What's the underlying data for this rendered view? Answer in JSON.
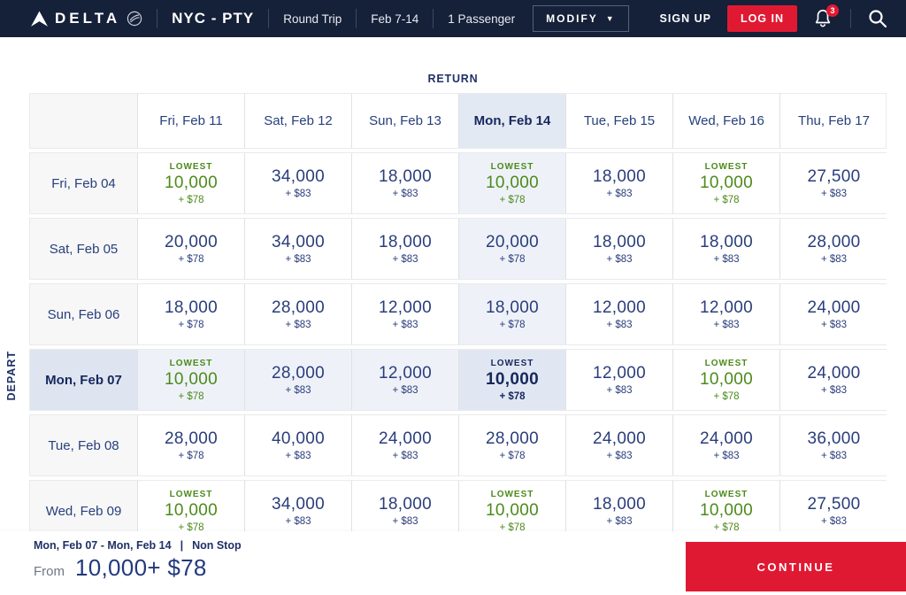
{
  "header": {
    "brand": "DELTA",
    "route": "NYC - PTY",
    "trip_type": "Round Trip",
    "dates": "Feb 7-14",
    "passengers": "1 Passenger",
    "modify_label": "MODIFY",
    "sign_up_label": "SIGN UP",
    "log_in_label": "LOG IN",
    "notification_count": "3"
  },
  "colors": {
    "nav_background": "#152039",
    "brand_red": "#e01933",
    "navy_text": "#2a3d7c",
    "lowest_green": "#4c8a1b",
    "selected_tint": "#e1e7f2",
    "light_tint": "#eef2f8"
  },
  "calendar": {
    "return_label": "RETURN",
    "depart_label": "DEPART",
    "lowest_label": "LOWEST",
    "return_dates": [
      "Fri, Feb 11",
      "Sat, Feb 12",
      "Sun, Feb 13",
      "Mon, Feb 14",
      "Tue, Feb 15",
      "Wed, Feb 16",
      "Thu, Feb 17"
    ],
    "selected_return_index": 3,
    "selected_depart_index": 3,
    "rows": [
      {
        "depart": "Fri, Feb 04",
        "cells": [
          {
            "lowest": true,
            "miles": "10,000",
            "cash": "+ $78"
          },
          {
            "miles": "34,000",
            "cash": "+ $83"
          },
          {
            "miles": "18,000",
            "cash": "+ $83"
          },
          {
            "lowest": true,
            "miles": "10,000",
            "cash": "+ $78"
          },
          {
            "miles": "18,000",
            "cash": "+ $83"
          },
          {
            "lowest": true,
            "miles": "10,000",
            "cash": "+ $78"
          },
          {
            "miles": "27,500",
            "cash": "+ $83"
          }
        ]
      },
      {
        "depart": "Sat, Feb 05",
        "cells": [
          {
            "miles": "20,000",
            "cash": "+ $78"
          },
          {
            "miles": "34,000",
            "cash": "+ $83"
          },
          {
            "miles": "18,000",
            "cash": "+ $83"
          },
          {
            "miles": "20,000",
            "cash": "+ $78"
          },
          {
            "miles": "18,000",
            "cash": "+ $83"
          },
          {
            "miles": "18,000",
            "cash": "+ $83"
          },
          {
            "miles": "28,000",
            "cash": "+ $83"
          }
        ]
      },
      {
        "depart": "Sun, Feb 06",
        "cells": [
          {
            "miles": "18,000",
            "cash": "+ $78"
          },
          {
            "miles": "28,000",
            "cash": "+ $83"
          },
          {
            "miles": "12,000",
            "cash": "+ $83"
          },
          {
            "miles": "18,000",
            "cash": "+ $78"
          },
          {
            "miles": "12,000",
            "cash": "+ $83"
          },
          {
            "miles": "12,000",
            "cash": "+ $83"
          },
          {
            "miles": "24,000",
            "cash": "+ $83"
          }
        ]
      },
      {
        "depart": "Mon, Feb 07",
        "selected": true,
        "cells": [
          {
            "lowest": true,
            "miles": "10,000",
            "cash": "+ $78"
          },
          {
            "miles": "28,000",
            "cash": "+ $83"
          },
          {
            "miles": "12,000",
            "cash": "+ $83"
          },
          {
            "lowest": true,
            "miles": "10,000",
            "cash": "+ $78",
            "selected": true
          },
          {
            "miles": "12,000",
            "cash": "+ $83"
          },
          {
            "lowest": true,
            "miles": "10,000",
            "cash": "+ $78"
          },
          {
            "miles": "24,000",
            "cash": "+ $83"
          }
        ]
      },
      {
        "depart": "Tue, Feb 08",
        "cells": [
          {
            "miles": "28,000",
            "cash": "+ $78"
          },
          {
            "miles": "40,000",
            "cash": "+ $83"
          },
          {
            "miles": "24,000",
            "cash": "+ $83"
          },
          {
            "miles": "28,000",
            "cash": "+ $78"
          },
          {
            "miles": "24,000",
            "cash": "+ $83"
          },
          {
            "miles": "24,000",
            "cash": "+ $83"
          },
          {
            "miles": "36,000",
            "cash": "+ $83"
          }
        ]
      },
      {
        "depart": "Wed, Feb 09",
        "cells": [
          {
            "lowest": true,
            "miles": "10,000",
            "cash": "+ $78"
          },
          {
            "miles": "34,000",
            "cash": "+ $83"
          },
          {
            "miles": "18,000",
            "cash": "+ $83"
          },
          {
            "lowest": true,
            "miles": "10,000",
            "cash": "+ $78"
          },
          {
            "miles": "18,000",
            "cash": "+ $83"
          },
          {
            "lowest": true,
            "miles": "10,000",
            "cash": "+ $78"
          },
          {
            "miles": "27,500",
            "cash": "+ $83"
          }
        ]
      }
    ]
  },
  "footer": {
    "summary": "Mon, Feb 07  -  Mon, Feb 14",
    "separator": "|",
    "stops": "Non Stop",
    "from_label": "From",
    "price": "10,000+ $78",
    "continue_label": "CONTINUE"
  }
}
